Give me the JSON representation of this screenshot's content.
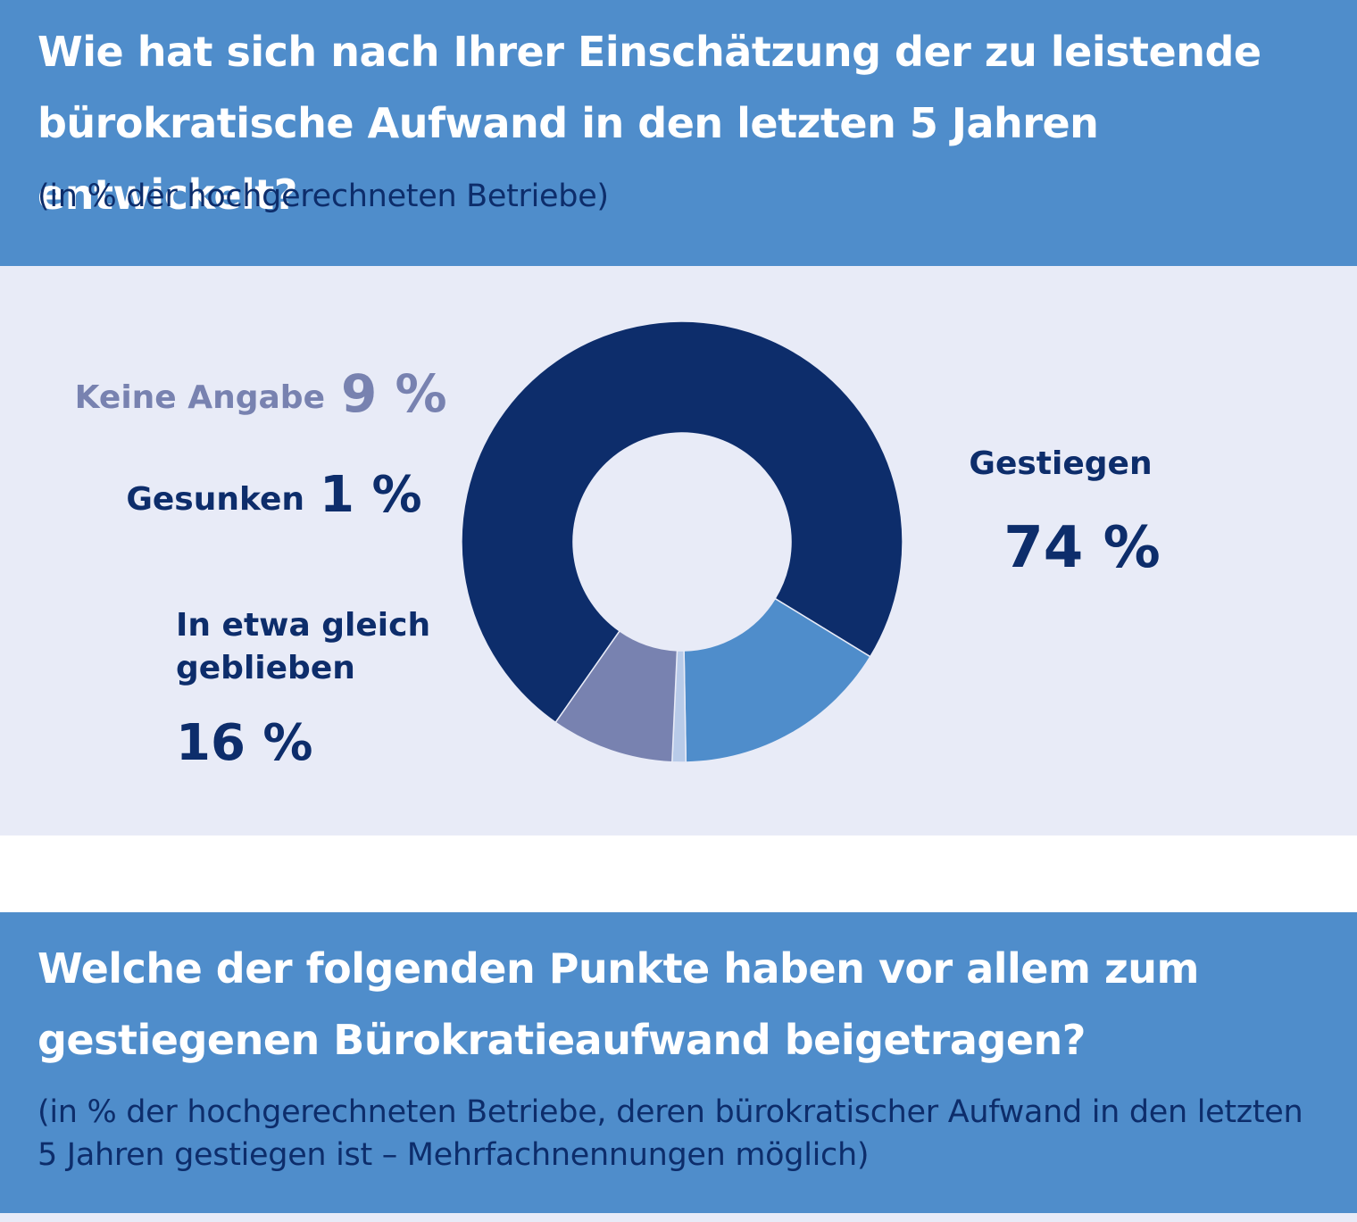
{
  "header1": {
    "title": "Wie hat sich nach Ihrer Einschätzung der zu leistende bürokratische Aufwand in den letzten 5 Jahren entwickelt?",
    "subtitle": "(in % der hochgerechneten Betriebe)"
  },
  "header2": {
    "title": "Welche der folgenden Punkte haben vor allem zum gestiegenen Bürokratieaufwand beigetragen?",
    "subtitle": "(in % der hochgerechneten Betriebe, deren bürokratischer Aufwand in den letzten 5 Jahren gestiegen ist – Mehrfachnennungen möglich)"
  },
  "colors": {
    "header_bg": "#4f8dcb",
    "panel_bg": "#e8ebf7",
    "dark_navy": "#0d2d6b"
  },
  "chart_data": {
    "type": "pie",
    "style": "donut",
    "title": "",
    "slices": [
      {
        "label": "Gestiegen",
        "value": 74,
        "display": "74 %",
        "color": "#0d2d6b"
      },
      {
        "label": "In etwa gleich geblieben",
        "value": 16,
        "display": "16 %",
        "color": "#4f8dcb"
      },
      {
        "label": "Gesunken",
        "value": 1,
        "display": "1 %",
        "color": "#b8cbe9"
      },
      {
        "label": "Keine Angabe",
        "value": 9,
        "display": "9 %",
        "color": "#7882b0"
      }
    ]
  }
}
